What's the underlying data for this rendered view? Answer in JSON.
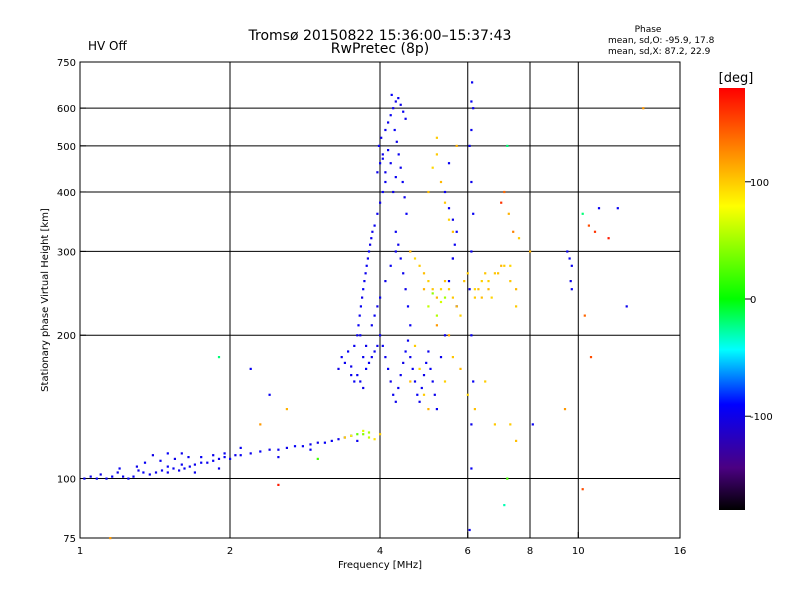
{
  "header": {
    "title_line1": "Tromsø 20150822 15:36:00–15:37:43",
    "title_line2": "RwPretec (8p)",
    "status_text": "HV Off",
    "status_color": "#e00000"
  },
  "phase_info": {
    "heading": "Phase",
    "o_mode": "mean, sd,O: -95.9, 17.8",
    "x_mode": "mean, sd,X: 87.2, 22.9"
  },
  "colorbar": {
    "unit": "[deg]",
    "ticks": [
      {
        "value": 100,
        "label": "100"
      },
      {
        "value": 0,
        "label": "0"
      },
      {
        "value": -100,
        "label": "-100"
      }
    ],
    "range": [
      -180,
      180
    ]
  },
  "chart_data": {
    "type": "scatter",
    "title": "Tromsø 20150822 15:36:00–15:37:43",
    "subtitle": "RwPretec (8p)",
    "xlabel": "Frequency [MHz]",
    "ylabel": "Stationary phase Virtual Height [km]",
    "x_scale": "log",
    "y_scale": "log",
    "xlim": [
      1,
      16
    ],
    "ylim": [
      75,
      750
    ],
    "x_ticks": [
      {
        "value": 1,
        "label": "1"
      },
      {
        "value": 2,
        "label": "2"
      },
      {
        "value": 4,
        "label": "4"
      },
      {
        "value": 6,
        "label": "6"
      },
      {
        "value": 8,
        "label": "8"
      },
      {
        "value": 10,
        "label": "10"
      },
      {
        "value": 16,
        "label": "16"
      }
    ],
    "y_ticks": [
      {
        "value": 75,
        "label": "75"
      },
      {
        "value": 100,
        "label": "100"
      },
      {
        "value": 200,
        "label": "200"
      },
      {
        "value": 300,
        "label": "300"
      },
      {
        "value": 400,
        "label": "400"
      },
      {
        "value": 500,
        "label": "500"
      },
      {
        "value": 600,
        "label": "600"
      },
      {
        "value": 750,
        "label": "750"
      }
    ],
    "grid": true,
    "color_encoding": "phase [deg]",
    "points": [
      [
        1.02,
        100,
        -95
      ],
      [
        1.05,
        101,
        -98
      ],
      [
        1.08,
        100,
        -92
      ],
      [
        1.1,
        102,
        -100
      ],
      [
        1.13,
        100,
        -96
      ],
      [
        1.16,
        101,
        -94
      ],
      [
        1.19,
        103,
        -99
      ],
      [
        1.22,
        101,
        -97
      ],
      [
        1.25,
        100,
        -93
      ],
      [
        1.28,
        101,
        -95
      ],
      [
        1.31,
        104,
        -100
      ],
      [
        1.34,
        103,
        -92
      ],
      [
        1.38,
        102,
        -96
      ],
      [
        1.42,
        103,
        -98
      ],
      [
        1.46,
        104,
        -94
      ],
      [
        1.5,
        103,
        -97
      ],
      [
        1.54,
        105,
        -95
      ],
      [
        1.58,
        104,
        -99
      ],
      [
        1.62,
        105,
        -92
      ],
      [
        1.66,
        106,
        -96
      ],
      [
        1.7,
        107,
        -98
      ],
      [
        1.75,
        108,
        -94
      ],
      [
        1.8,
        108,
        -97
      ],
      [
        1.85,
        109,
        -95
      ],
      [
        1.9,
        110,
        -99
      ],
      [
        1.95,
        111,
        -93
      ],
      [
        2.0,
        110,
        -96
      ],
      [
        2.05,
        112,
        -98
      ],
      [
        2.1,
        112,
        -95
      ],
      [
        2.2,
        113,
        -97
      ],
      [
        2.3,
        114,
        -94
      ],
      [
        2.4,
        115,
        -99
      ],
      [
        2.5,
        115,
        -96
      ],
      [
        2.6,
        116,
        -98
      ],
      [
        2.7,
        117,
        -93
      ],
      [
        2.8,
        117,
        -95
      ],
      [
        2.9,
        118,
        -97
      ],
      [
        3.0,
        119,
        -100
      ],
      [
        3.1,
        119,
        -94
      ],
      [
        3.2,
        120,
        -96
      ],
      [
        3.3,
        121,
        -98
      ],
      [
        3.4,
        122,
        -92
      ],
      [
        3.5,
        123,
        -95
      ],
      [
        3.6,
        120,
        -97
      ],
      [
        3.7,
        124,
        40
      ],
      [
        3.8,
        122,
        60
      ],
      [
        3.9,
        121,
        90
      ],
      [
        4.0,
        124,
        100
      ],
      [
        1.35,
        108,
        -95
      ],
      [
        1.45,
        109,
        -97
      ],
      [
        1.55,
        110,
        -99
      ],
      [
        1.65,
        111,
        -96
      ],
      [
        1.75,
        111,
        -94
      ],
      [
        1.85,
        112,
        -98
      ],
      [
        1.95,
        113,
        -95
      ],
      [
        1.4,
        112,
        -100
      ],
      [
        1.5,
        113,
        -93
      ],
      [
        1.6,
        113,
        -97
      ],
      [
        1.2,
        105,
        -95
      ],
      [
        1.3,
        106,
        -98
      ],
      [
        1.5,
        106,
        -92
      ],
      [
        1.7,
        103,
        -96
      ],
      [
        1.9,
        105,
        -98
      ],
      [
        2.1,
        116,
        -95
      ],
      [
        2.5,
        111,
        -97
      ],
      [
        2.9,
        115,
        -94
      ],
      [
        1.6,
        107,
        -96
      ],
      [
        3.3,
        170,
        -100
      ],
      [
        3.35,
        180,
        -95
      ],
      [
        3.4,
        175,
        -97
      ],
      [
        3.45,
        185,
        -93
      ],
      [
        3.5,
        172,
        -99
      ],
      [
        3.55,
        190,
        -96
      ],
      [
        3.6,
        200,
        -98
      ],
      [
        3.62,
        210,
        -94
      ],
      [
        3.64,
        220,
        -97
      ],
      [
        3.66,
        230,
        -95
      ],
      [
        3.68,
        240,
        -100
      ],
      [
        3.7,
        250,
        -93
      ],
      [
        3.72,
        260,
        -96
      ],
      [
        3.74,
        270,
        -98
      ],
      [
        3.76,
        280,
        -95
      ],
      [
        3.78,
        290,
        -97
      ],
      [
        3.8,
        300,
        -94
      ],
      [
        3.82,
        310,
        -99
      ],
      [
        3.84,
        320,
        -96
      ],
      [
        3.86,
        330,
        -98
      ],
      [
        3.6,
        165,
        -95
      ],
      [
        3.65,
        160,
        -97
      ],
      [
        3.7,
        155,
        -99
      ],
      [
        3.75,
        170,
        -93
      ],
      [
        3.8,
        175,
        -96
      ],
      [
        3.85,
        180,
        -98
      ],
      [
        3.9,
        185,
        -95
      ],
      [
        3.95,
        190,
        -97
      ],
      [
        3.55,
        160,
        -94
      ],
      [
        3.5,
        165,
        -96
      ],
      [
        3.9,
        340,
        -95
      ],
      [
        3.95,
        360,
        -97
      ],
      [
        4.0,
        380,
        -99
      ],
      [
        4.05,
        400,
        -93
      ],
      [
        4.1,
        420,
        -96
      ],
      [
        3.95,
        440,
        -98
      ],
      [
        4.0,
        460,
        -95
      ],
      [
        4.05,
        480,
        -97
      ],
      [
        3.98,
        500,
        -94
      ],
      [
        4.02,
        520,
        -99
      ],
      [
        4.1,
        540,
        -96
      ],
      [
        4.15,
        560,
        -98
      ],
      [
        4.2,
        580,
        -95
      ],
      [
        4.25,
        600,
        -97
      ],
      [
        4.3,
        620,
        -100
      ],
      [
        4.22,
        640,
        -93
      ],
      [
        4.35,
        630,
        -96
      ],
      [
        4.4,
        610,
        -98
      ],
      [
        4.45,
        590,
        -95
      ],
      [
        4.5,
        570,
        -97
      ],
      [
        4.28,
        540,
        -94
      ],
      [
        4.32,
        510,
        -99
      ],
      [
        4.36,
        480,
        -96
      ],
      [
        4.4,
        450,
        -98
      ],
      [
        4.44,
        420,
        -95
      ],
      [
        4.48,
        390,
        -97
      ],
      [
        4.52,
        360,
        -94
      ],
      [
        4.3,
        330,
        -96
      ],
      [
        4.35,
        310,
        -98
      ],
      [
        4.4,
        290,
        -95
      ],
      [
        4.45,
        270,
        -97
      ],
      [
        4.5,
        250,
        -99
      ],
      [
        4.55,
        230,
        -93
      ],
      [
        4.6,
        210,
        -96
      ],
      [
        4.25,
        400,
        -98
      ],
      [
        4.3,
        430,
        -95
      ],
      [
        4.2,
        460,
        -97
      ],
      [
        4.15,
        490,
        -94
      ],
      [
        4.1,
        440,
        -99
      ],
      [
        4.05,
        470,
        -96
      ],
      [
        4.0,
        200,
        -98
      ],
      [
        4.05,
        190,
        -95
      ],
      [
        4.1,
        180,
        -97
      ],
      [
        4.15,
        170,
        -94
      ],
      [
        4.2,
        160,
        -99
      ],
      [
        4.25,
        150,
        -96
      ],
      [
        4.3,
        145,
        -98
      ],
      [
        4.35,
        155,
        -95
      ],
      [
        4.4,
        165,
        -97
      ],
      [
        4.45,
        175,
        -100
      ],
      [
        4.5,
        185,
        -93
      ],
      [
        4.55,
        195,
        -96
      ],
      [
        4.6,
        180,
        -98
      ],
      [
        4.65,
        170,
        -95
      ],
      [
        4.7,
        160,
        -97
      ],
      [
        4.75,
        150,
        -94
      ],
      [
        4.8,
        145,
        -99
      ],
      [
        4.85,
        155,
        -96
      ],
      [
        4.9,
        165,
        -98
      ],
      [
        4.95,
        175,
        -95
      ],
      [
        5.0,
        185,
        -97
      ],
      [
        5.05,
        170,
        -94
      ],
      [
        5.1,
        160,
        -96
      ],
      [
        5.15,
        150,
        -98
      ],
      [
        5.2,
        140,
        -95
      ],
      [
        5.3,
        180,
        -97
      ],
      [
        5.4,
        200,
        -99
      ],
      [
        5.5,
        260,
        -93
      ],
      [
        5.6,
        290,
        -96
      ],
      [
        5.7,
        230,
        -98
      ],
      [
        3.7,
        180,
        -96
      ],
      [
        3.75,
        190,
        -98
      ],
      [
        3.65,
        200,
        -95
      ],
      [
        3.85,
        210,
        -97
      ],
      [
        3.9,
        220,
        -94
      ],
      [
        3.95,
        230,
        -99
      ],
      [
        4.0,
        240,
        -96
      ],
      [
        4.1,
        260,
        -98
      ],
      [
        4.2,
        280,
        -95
      ],
      [
        4.3,
        300,
        -97
      ],
      [
        4.6,
        300,
        110
      ],
      [
        4.7,
        290,
        95
      ],
      [
        4.8,
        280,
        100
      ],
      [
        4.9,
        270,
        105
      ],
      [
        5.0,
        260,
        98
      ],
      [
        5.1,
        250,
        102
      ],
      [
        5.2,
        240,
        108
      ],
      [
        5.3,
        250,
        96
      ],
      [
        5.4,
        260,
        104
      ],
      [
        5.5,
        250,
        99
      ],
      [
        5.6,
        240,
        101
      ],
      [
        5.7,
        230,
        107
      ],
      [
        5.8,
        220,
        97
      ],
      [
        5.9,
        260,
        103
      ],
      [
        6.0,
        270,
        100
      ],
      [
        6.2,
        250,
        95
      ],
      [
        6.4,
        240,
        105
      ],
      [
        6.6,
        260,
        98
      ],
      [
        6.8,
        270,
        102
      ],
      [
        7.0,
        280,
        108
      ],
      [
        5.0,
        230,
        60
      ],
      [
        5.2,
        220,
        55
      ],
      [
        5.4,
        240,
        50
      ],
      [
        5.1,
        245,
        45
      ],
      [
        5.3,
        235,
        65
      ],
      [
        4.9,
        250,
        110
      ],
      [
        5.2,
        210,
        120
      ],
      [
        5.5,
        200,
        115
      ],
      [
        4.7,
        190,
        100
      ],
      [
        4.8,
        170,
        95
      ],
      [
        4.6,
        160,
        105
      ],
      [
        4.9,
        150,
        100
      ],
      [
        5.0,
        140,
        110
      ],
      [
        5.4,
        160,
        98
      ],
      [
        5.6,
        180,
        102
      ],
      [
        5.8,
        170,
        108
      ],
      [
        6.0,
        150,
        96
      ],
      [
        6.2,
        140,
        104
      ],
      [
        6.5,
        160,
        99
      ],
      [
        6.8,
        130,
        101
      ],
      [
        5.0,
        400,
        105
      ],
      [
        5.1,
        450,
        95
      ],
      [
        5.2,
        480,
        100
      ],
      [
        5.3,
        420,
        108
      ],
      [
        5.4,
        380,
        102
      ],
      [
        5.5,
        350,
        98
      ],
      [
        5.6,
        330,
        104
      ],
      [
        5.7,
        500,
        110
      ],
      [
        5.2,
        520,
        100
      ],
      [
        5.5,
        460,
        -95
      ],
      [
        5.6,
        290,
        -97
      ],
      [
        5.65,
        310,
        -96
      ],
      [
        5.7,
        330,
        -94
      ],
      [
        5.6,
        350,
        -98
      ],
      [
        5.5,
        370,
        -95
      ],
      [
        5.4,
        400,
        -97
      ],
      [
        6.1,
        620,
        -95
      ],
      [
        6.15,
        600,
        -97
      ],
      [
        6.1,
        540,
        -96
      ],
      [
        6.05,
        500,
        -94
      ],
      [
        6.1,
        420,
        -98
      ],
      [
        6.15,
        360,
        -95
      ],
      [
        6.1,
        300,
        -97
      ],
      [
        6.05,
        250,
        -99
      ],
      [
        6.1,
        200,
        -96
      ],
      [
        6.15,
        160,
        -94
      ],
      [
        6.1,
        130,
        -98
      ],
      [
        6.1,
        105,
        -95
      ],
      [
        6.05,
        78,
        -97
      ],
      [
        6.12,
        680,
        -96
      ],
      [
        6.2,
        240,
        100
      ],
      [
        6.3,
        250,
        105
      ],
      [
        6.4,
        260,
        98
      ],
      [
        6.5,
        270,
        102
      ],
      [
        6.6,
        250,
        108
      ],
      [
        6.7,
        240,
        96
      ],
      [
        6.9,
        270,
        104
      ],
      [
        7.1,
        280,
        99
      ],
      [
        7.3,
        260,
        101
      ],
      [
        7.5,
        250,
        107
      ],
      [
        7.2,
        500,
        -20
      ],
      [
        7.1,
        400,
        140
      ],
      [
        7.0,
        380,
        160
      ],
      [
        7.25,
        360,
        110
      ],
      [
        7.4,
        330,
        130
      ],
      [
        7.6,
        320,
        100
      ],
      [
        7.3,
        280,
        95
      ],
      [
        7.5,
        230,
        100
      ],
      [
        7.2,
        100,
        20
      ],
      [
        7.1,
        88,
        -30
      ],
      [
        7.3,
        130,
        100
      ],
      [
        7.5,
        120,
        105
      ],
      [
        8.0,
        300,
        110
      ],
      [
        8.1,
        130,
        -95
      ],
      [
        9.5,
        300,
        -97
      ],
      [
        9.6,
        290,
        -95
      ],
      [
        9.7,
        280,
        -96
      ],
      [
        9.65,
        260,
        -98
      ],
      [
        9.7,
        250,
        -94
      ],
      [
        9.4,
        140,
        120
      ],
      [
        10.2,
        360,
        -20
      ],
      [
        10.5,
        340,
        150
      ],
      [
        11.0,
        370,
        -95
      ],
      [
        10.8,
        330,
        160
      ],
      [
        11.5,
        320,
        170
      ],
      [
        12.0,
        370,
        -95
      ],
      [
        10.3,
        220,
        140
      ],
      [
        10.6,
        180,
        150
      ],
      [
        12.5,
        230,
        -97
      ],
      [
        13.5,
        600,
        120
      ],
      [
        1.15,
        75,
        120
      ],
      [
        2.5,
        97,
        170
      ],
      [
        1.9,
        180,
        -20
      ],
      [
        2.3,
        130,
        120
      ],
      [
        2.4,
        150,
        -95
      ],
      [
        2.2,
        170,
        -95
      ],
      [
        2.6,
        140,
        110
      ],
      [
        3.0,
        110,
        20
      ],
      [
        3.6,
        124,
        30
      ],
      [
        3.8,
        125,
        50
      ],
      [
        3.7,
        126,
        70
      ],
      [
        3.5,
        123,
        80
      ],
      [
        3.4,
        122,
        100
      ],
      [
        10.2,
        95,
        150
      ]
    ]
  }
}
